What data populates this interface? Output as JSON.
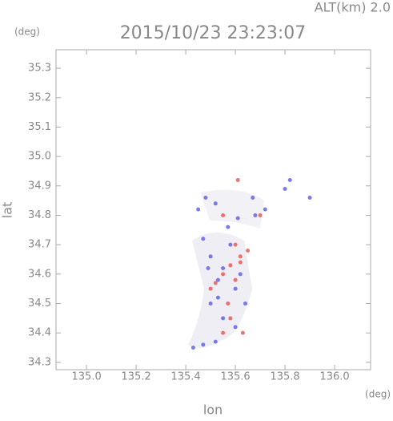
{
  "chart_data": {
    "type": "scatter",
    "title": "2015/10/23 23:23:07",
    "altitude_label": "ALT(km)  2.0",
    "y_unit": "(deg)",
    "x_unit": "(deg)",
    "xlabel": "lon",
    "ylabel": "lat",
    "xlim": [
      134.877,
      136.145
    ],
    "ylim": [
      34.275,
      35.363
    ],
    "xticks": [
      {
        "value": 135,
        "label": "135.0"
      },
      135.2,
      135.4,
      135.6,
      135.8,
      {
        "value": 136,
        "label": "136.0"
      }
    ],
    "yticks": [
      34.3,
      34.4,
      34.5,
      34.6,
      34.7,
      34.8,
      34.9,
      {
        "value": 35,
        "label": "35.0"
      },
      35.1,
      35.2,
      35.3
    ],
    "series": [
      {
        "color": "#5a5ae6",
        "x": [
          135.43,
          135.47,
          135.52,
          135.55,
          135.5,
          135.53,
          135.6,
          135.55,
          135.5,
          135.47,
          135.58,
          135.53,
          135.62,
          135.48,
          135.52,
          135.45,
          135.67,
          135.72,
          135.82,
          135.8,
          135.9,
          135.57,
          135.64,
          135.6,
          135.49,
          135.68,
          135.61
        ],
        "y": [
          34.35,
          34.36,
          34.37,
          34.45,
          34.5,
          34.52,
          34.55,
          34.62,
          34.66,
          34.72,
          34.7,
          34.58,
          34.6,
          34.86,
          34.84,
          34.82,
          34.86,
          34.82,
          34.92,
          34.89,
          34.86,
          34.76,
          34.5,
          34.42,
          34.62,
          34.8,
          34.79
        ]
      },
      {
        "color": "#e85050",
        "x": [
          135.61,
          135.6,
          135.62,
          135.58,
          135.55,
          135.6,
          135.58,
          135.55,
          135.63,
          135.52,
          135.65,
          135.7,
          135.55,
          135.62,
          135.5,
          135.57
        ],
        "y": [
          34.92,
          34.7,
          34.66,
          34.63,
          34.6,
          34.58,
          34.45,
          34.4,
          34.4,
          34.57,
          34.68,
          34.8,
          34.8,
          34.64,
          34.55,
          34.5
        ]
      }
    ]
  }
}
